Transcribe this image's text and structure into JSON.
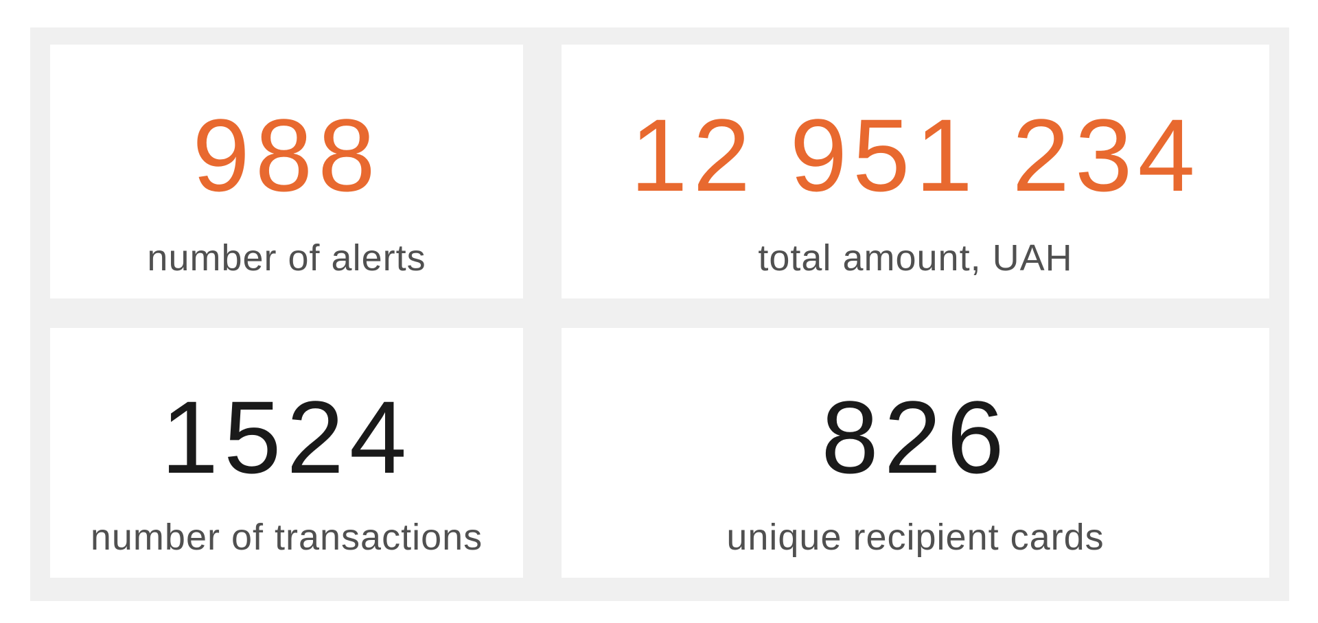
{
  "cards": [
    {
      "value": "988",
      "label": "number of alerts",
      "color": "#e8692f"
    },
    {
      "value": "12 951 234",
      "label": "total amount, UAH",
      "color": "#e8692f"
    },
    {
      "value": "1524",
      "label": "number of transactions",
      "color": "#1a1a1a"
    },
    {
      "value": "826",
      "label": "unique recipient cards",
      "color": "#1a1a1a"
    }
  ]
}
